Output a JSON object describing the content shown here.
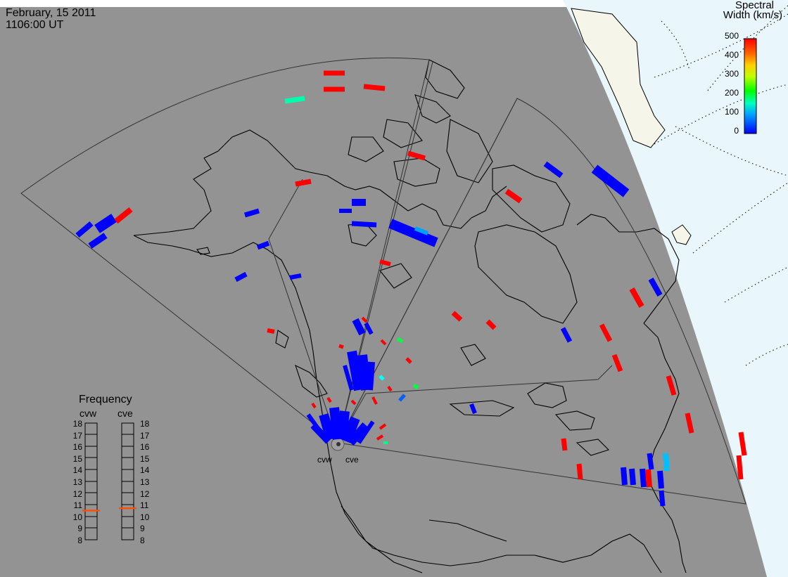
{
  "title": {
    "date": "February, 15 2011",
    "time": "1106:00 UT"
  },
  "colorbar": {
    "title_line1": "Spectral",
    "title_line2": "Width (km/s)",
    "ticks": [
      "500",
      "400",
      "300",
      "200",
      "100",
      "0"
    ],
    "min": 0,
    "max": 500,
    "colors": [
      "#0000ff",
      "#00a0ff",
      "#00ffff",
      "#00ff80",
      "#00ff00",
      "#80ff00",
      "#ffff00",
      "#ffc000",
      "#ff8000",
      "#ff4000",
      "#ff0000"
    ]
  },
  "frequency_panel": {
    "title": "Frequency",
    "radars": [
      {
        "name": "cvw",
        "frequency": 10.5
      },
      {
        "name": "cve",
        "frequency": 10.7
      }
    ],
    "ticks": [
      "18",
      "17",
      "16",
      "15",
      "14",
      "13",
      "12",
      "11",
      "10",
      "9",
      "8"
    ],
    "range": [
      8,
      18
    ],
    "marker_color": "#ff5000"
  },
  "sites": [
    {
      "label": "cvw"
    },
    {
      "label": "cve"
    }
  ],
  "colors": {
    "land": "#939393",
    "night_ocean": "#e9f6fc",
    "night_land": "#f6f5ea",
    "coast": "#000000",
    "fov": "#333333",
    "grid": "#000000"
  }
}
